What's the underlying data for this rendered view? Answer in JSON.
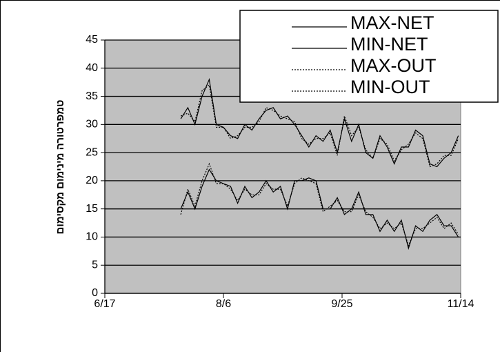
{
  "chart_data": {
    "type": "line",
    "y_label": "טמפרטורה מינימום מקסימום",
    "x": [
      "7/19",
      "7/22",
      "7/25",
      "7/28",
      "7/31",
      "8/3",
      "8/6",
      "8/9",
      "8/12",
      "8/15",
      "8/18",
      "8/21",
      "8/24",
      "8/27",
      "8/30",
      "9/2",
      "9/5",
      "9/8",
      "9/11",
      "9/14",
      "9/17",
      "9/20",
      "9/23",
      "9/26",
      "9/29",
      "10/2",
      "10/5",
      "10/8",
      "10/11",
      "10/14",
      "10/17",
      "10/20",
      "10/23",
      "10/26",
      "10/29",
      "11/1",
      "11/4",
      "11/7",
      "11/10",
      "11/13"
    ],
    "series": [
      {
        "name": "MAX-NET",
        "color": "#000000",
        "style": "solid",
        "values": [
          31,
          33,
          30,
          35,
          38,
          30,
          29.5,
          28,
          27.5,
          30,
          29,
          31,
          32.5,
          33,
          31,
          31.5,
          30,
          28,
          26,
          28,
          27,
          29,
          25,
          31,
          27,
          30,
          25,
          24,
          28,
          26,
          23,
          26,
          26,
          29,
          28,
          23,
          22.5,
          24,
          25,
          28
        ]
      },
      {
        "name": "MIN-NET",
        "color": "#000000",
        "style": "solid",
        "values": [
          15,
          18,
          15,
          19,
          22,
          20,
          19.5,
          19,
          16,
          19,
          17,
          18,
          20,
          18,
          19,
          15,
          20,
          20,
          20.5,
          20,
          15,
          15,
          17,
          14,
          15,
          18,
          14,
          14,
          11,
          13,
          11,
          13,
          8,
          12,
          11,
          13,
          14,
          12,
          12,
          10
        ]
      },
      {
        "name": "MAX-OUT",
        "color": "#000000",
        "style": "dotted",
        "values": [
          31.5,
          32,
          30.5,
          36,
          37,
          29.5,
          29.5,
          27.5,
          28,
          29.5,
          29.5,
          30.5,
          33,
          32.5,
          31.5,
          31,
          30.5,
          27.5,
          26.5,
          27.5,
          27.5,
          28.5,
          24.5,
          31.5,
          28,
          29.5,
          25.5,
          24,
          27.5,
          26.5,
          23.5,
          25.5,
          26.5,
          28.5,
          27.5,
          22.5,
          23,
          24.5,
          24.5,
          27.5
        ]
      },
      {
        "name": "MIN-OUT",
        "color": "#000000",
        "style": "dotted",
        "values": [
          14,
          18.5,
          15.5,
          20,
          23,
          19.5,
          19.5,
          18.5,
          16.5,
          18.5,
          17.5,
          17.5,
          19.5,
          18.5,
          18.5,
          15.5,
          19.5,
          20.5,
          20,
          19.5,
          14.5,
          15.5,
          16.5,
          14.5,
          14.5,
          17.5,
          14.5,
          13.5,
          11.5,
          12.5,
          11.5,
          12.5,
          8.5,
          11.5,
          11.5,
          12.5,
          13.5,
          11.5,
          12.5,
          10.5
        ]
      }
    ],
    "xlim": [
      "6/17",
      "11/14"
    ],
    "xticks": [
      "6/17",
      "8/6",
      "9/25",
      "11/14"
    ],
    "ylim": [
      0,
      45
    ],
    "yticks": [
      0,
      5,
      10,
      15,
      20,
      25,
      30,
      35,
      40,
      45
    ],
    "grid": true,
    "legend": "upper right",
    "plot_background": "#c0c0c0"
  }
}
